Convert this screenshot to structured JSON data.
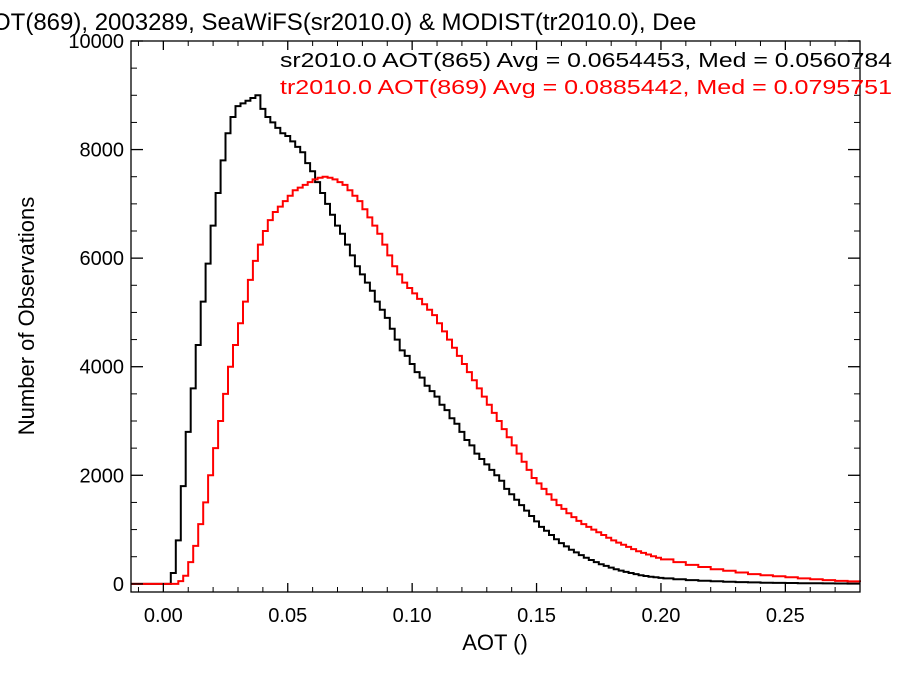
{
  "chart_data": {
    "type": "line",
    "step": true,
    "title": "OT(869), 2003289, SeaWiFS(sr2010.0) & MODIST(tr2010.0), Dee",
    "xlabel": "AOT ()",
    "ylabel": "Number of Observations",
    "xlim": [
      -0.013,
      0.28
    ],
    "ylim": [
      -150,
      10000
    ],
    "x_ticks": [
      {
        "value": 0.0,
        "label": "0.00"
      },
      {
        "value": 0.05,
        "label": "0.05"
      },
      {
        "value": 0.1,
        "label": "0.10"
      },
      {
        "value": 0.15,
        "label": "0.15"
      },
      {
        "value": 0.2,
        "label": "0.20"
      },
      {
        "value": 0.25,
        "label": "0.25"
      }
    ],
    "y_ticks": [
      {
        "value": 0,
        "label": "0"
      },
      {
        "value": 2000,
        "label": "2000"
      },
      {
        "value": 4000,
        "label": "4000"
      },
      {
        "value": 6000,
        "label": "6000"
      },
      {
        "value": 8000,
        "label": "8000"
      },
      {
        "value": 10000,
        "label": "10000"
      }
    ],
    "grid": false,
    "legend_placement": "top-right",
    "series": [
      {
        "name": "sr2010.0 AOT(865) Avg = 0.0654453, Med = 0.0560784",
        "color": "#000000",
        "points": [
          [
            -0.013,
            0
          ],
          [
            0.002,
            0
          ],
          [
            0.003,
            200
          ],
          [
            0.005,
            800
          ],
          [
            0.007,
            1800
          ],
          [
            0.009,
            2800
          ],
          [
            0.011,
            3600
          ],
          [
            0.013,
            4400
          ],
          [
            0.015,
            5200
          ],
          [
            0.017,
            5900
          ],
          [
            0.019,
            6600
          ],
          [
            0.021,
            7200
          ],
          [
            0.023,
            7800
          ],
          [
            0.025,
            8300
          ],
          [
            0.027,
            8600
          ],
          [
            0.029,
            8800
          ],
          [
            0.031,
            8850
          ],
          [
            0.033,
            8900
          ],
          [
            0.035,
            8950
          ],
          [
            0.037,
            9000
          ],
          [
            0.039,
            8750
          ],
          [
            0.041,
            8600
          ],
          [
            0.043,
            8500
          ],
          [
            0.045,
            8400
          ],
          [
            0.047,
            8300
          ],
          [
            0.049,
            8250
          ],
          [
            0.051,
            8150
          ],
          [
            0.053,
            8050
          ],
          [
            0.055,
            7950
          ],
          [
            0.057,
            7750
          ],
          [
            0.059,
            7600
          ],
          [
            0.061,
            7400
          ],
          [
            0.063,
            7200
          ],
          [
            0.065,
            7000
          ],
          [
            0.067,
            6800
          ],
          [
            0.069,
            6600
          ],
          [
            0.071,
            6450
          ],
          [
            0.073,
            6250
          ],
          [
            0.075,
            6050
          ],
          [
            0.077,
            5850
          ],
          [
            0.079,
            5700
          ],
          [
            0.081,
            5550
          ],
          [
            0.083,
            5400
          ],
          [
            0.085,
            5200
          ],
          [
            0.087,
            5050
          ],
          [
            0.089,
            4900
          ],
          [
            0.091,
            4700
          ],
          [
            0.093,
            4500
          ],
          [
            0.095,
            4300
          ],
          [
            0.097,
            4200
          ],
          [
            0.099,
            4050
          ],
          [
            0.101,
            3900
          ],
          [
            0.103,
            3800
          ],
          [
            0.105,
            3650
          ],
          [
            0.107,
            3550
          ],
          [
            0.109,
            3450
          ],
          [
            0.111,
            3300
          ],
          [
            0.113,
            3200
          ],
          [
            0.115,
            3050
          ],
          [
            0.117,
            2950
          ],
          [
            0.119,
            2800
          ],
          [
            0.121,
            2650
          ],
          [
            0.123,
            2550
          ],
          [
            0.125,
            2400
          ],
          [
            0.127,
            2300
          ],
          [
            0.129,
            2200
          ],
          [
            0.131,
            2100
          ],
          [
            0.133,
            2000
          ],
          [
            0.135,
            1900
          ],
          [
            0.137,
            1750
          ],
          [
            0.139,
            1650
          ],
          [
            0.141,
            1550
          ],
          [
            0.143,
            1450
          ],
          [
            0.145,
            1350
          ],
          [
            0.147,
            1250
          ],
          [
            0.149,
            1150
          ],
          [
            0.151,
            1050
          ],
          [
            0.153,
            980
          ],
          [
            0.155,
            900
          ],
          [
            0.157,
            820
          ],
          [
            0.159,
            750
          ],
          [
            0.161,
            690
          ],
          [
            0.163,
            630
          ],
          [
            0.165,
            580
          ],
          [
            0.167,
            530
          ],
          [
            0.169,
            480
          ],
          [
            0.171,
            440
          ],
          [
            0.173,
            400
          ],
          [
            0.175,
            360
          ],
          [
            0.177,
            330
          ],
          [
            0.179,
            300
          ],
          [
            0.181,
            270
          ],
          [
            0.183,
            245
          ],
          [
            0.185,
            220
          ],
          [
            0.187,
            200
          ],
          [
            0.189,
            180
          ],
          [
            0.191,
            160
          ],
          [
            0.193,
            145
          ],
          [
            0.195,
            130
          ],
          [
            0.197,
            120
          ],
          [
            0.199,
            110
          ],
          [
            0.201,
            100
          ],
          [
            0.205,
            85
          ],
          [
            0.21,
            70
          ],
          [
            0.215,
            58
          ],
          [
            0.22,
            48
          ],
          [
            0.225,
            40
          ],
          [
            0.23,
            33
          ],
          [
            0.235,
            27
          ],
          [
            0.24,
            22
          ],
          [
            0.245,
            18
          ],
          [
            0.25,
            15
          ],
          [
            0.255,
            12
          ],
          [
            0.26,
            10
          ],
          [
            0.265,
            8
          ],
          [
            0.27,
            6
          ],
          [
            0.275,
            5
          ],
          [
            0.28,
            4
          ]
        ]
      },
      {
        "name": "tr2010.0 AOT(869) Avg = 0.0885442, Med = 0.0795751",
        "color": "#ff0000",
        "points": [
          [
            -0.013,
            0
          ],
          [
            0.004,
            0
          ],
          [
            0.006,
            50
          ],
          [
            0.008,
            150
          ],
          [
            0.01,
            400
          ],
          [
            0.012,
            700
          ],
          [
            0.014,
            1100
          ],
          [
            0.016,
            1500
          ],
          [
            0.018,
            2000
          ],
          [
            0.02,
            2500
          ],
          [
            0.022,
            3000
          ],
          [
            0.024,
            3500
          ],
          [
            0.026,
            4000
          ],
          [
            0.028,
            4400
          ],
          [
            0.03,
            4800
          ],
          [
            0.032,
            5200
          ],
          [
            0.034,
            5600
          ],
          [
            0.036,
            5950
          ],
          [
            0.038,
            6250
          ],
          [
            0.04,
            6500
          ],
          [
            0.042,
            6700
          ],
          [
            0.044,
            6850
          ],
          [
            0.046,
            6950
          ],
          [
            0.048,
            7050
          ],
          [
            0.05,
            7150
          ],
          [
            0.052,
            7250
          ],
          [
            0.054,
            7300
          ],
          [
            0.056,
            7350
          ],
          [
            0.058,
            7400
          ],
          [
            0.06,
            7450
          ],
          [
            0.062,
            7480
          ],
          [
            0.064,
            7500
          ],
          [
            0.066,
            7480
          ],
          [
            0.068,
            7450
          ],
          [
            0.07,
            7400
          ],
          [
            0.072,
            7350
          ],
          [
            0.074,
            7250
          ],
          [
            0.076,
            7150
          ],
          [
            0.078,
            7050
          ],
          [
            0.08,
            6900
          ],
          [
            0.082,
            6750
          ],
          [
            0.084,
            6600
          ],
          [
            0.086,
            6450
          ],
          [
            0.088,
            6250
          ],
          [
            0.09,
            6050
          ],
          [
            0.092,
            5850
          ],
          [
            0.094,
            5700
          ],
          [
            0.096,
            5550
          ],
          [
            0.098,
            5450
          ],
          [
            0.1,
            5350
          ],
          [
            0.102,
            5250
          ],
          [
            0.104,
            5150
          ],
          [
            0.106,
            5050
          ],
          [
            0.108,
            4950
          ],
          [
            0.11,
            4800
          ],
          [
            0.112,
            4650
          ],
          [
            0.114,
            4500
          ],
          [
            0.116,
            4350
          ],
          [
            0.118,
            4200
          ],
          [
            0.12,
            4050
          ],
          [
            0.122,
            3900
          ],
          [
            0.124,
            3750
          ],
          [
            0.126,
            3600
          ],
          [
            0.128,
            3450
          ],
          [
            0.13,
            3300
          ],
          [
            0.132,
            3150
          ],
          [
            0.134,
            3000
          ],
          [
            0.136,
            2850
          ],
          [
            0.138,
            2700
          ],
          [
            0.14,
            2550
          ],
          [
            0.142,
            2400
          ],
          [
            0.144,
            2250
          ],
          [
            0.146,
            2100
          ],
          [
            0.148,
            1950
          ],
          [
            0.15,
            1850
          ],
          [
            0.152,
            1750
          ],
          [
            0.154,
            1650
          ],
          [
            0.156,
            1550
          ],
          [
            0.158,
            1450
          ],
          [
            0.16,
            1380
          ],
          [
            0.162,
            1300
          ],
          [
            0.164,
            1230
          ],
          [
            0.166,
            1160
          ],
          [
            0.168,
            1100
          ],
          [
            0.17,
            1050
          ],
          [
            0.172,
            1000
          ],
          [
            0.174,
            950
          ],
          [
            0.176,
            900
          ],
          [
            0.178,
            850
          ],
          [
            0.18,
            800
          ],
          [
            0.182,
            760
          ],
          [
            0.184,
            720
          ],
          [
            0.186,
            680
          ],
          [
            0.188,
            640
          ],
          [
            0.19,
            600
          ],
          [
            0.192,
            570
          ],
          [
            0.194,
            540
          ],
          [
            0.196,
            510
          ],
          [
            0.198,
            480
          ],
          [
            0.2,
            450
          ],
          [
            0.205,
            400
          ],
          [
            0.21,
            350
          ],
          [
            0.215,
            310
          ],
          [
            0.22,
            270
          ],
          [
            0.225,
            240
          ],
          [
            0.23,
            210
          ],
          [
            0.235,
            180
          ],
          [
            0.24,
            160
          ],
          [
            0.245,
            140
          ],
          [
            0.25,
            120
          ],
          [
            0.255,
            100
          ],
          [
            0.26,
            85
          ],
          [
            0.265,
            70
          ],
          [
            0.27,
            55
          ],
          [
            0.275,
            45
          ],
          [
            0.28,
            35
          ]
        ]
      }
    ]
  }
}
